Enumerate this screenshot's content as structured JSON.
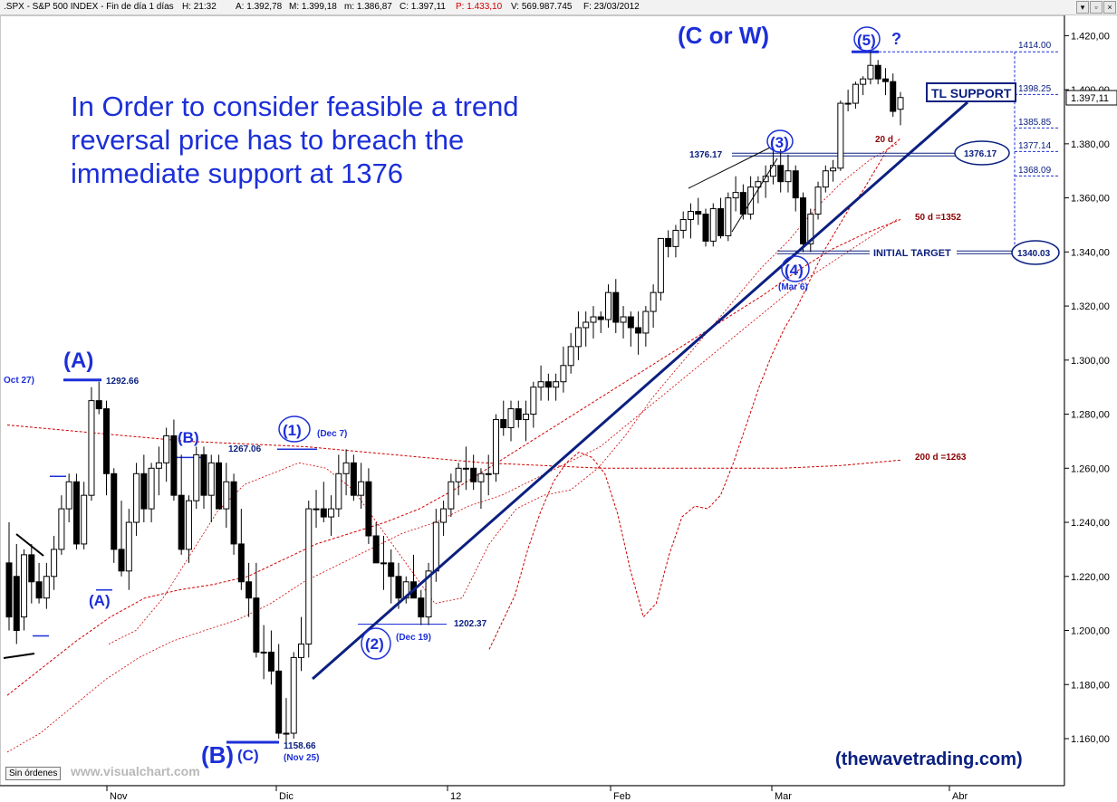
{
  "header": {
    "symbol": ".SPX - S&P 500 INDEX - Fin de día 1 días",
    "hour": "H: 21:32",
    "open": "A: 1.392,78",
    "high": "M: 1.399,18",
    "low": "m: 1.386,87",
    "close": "C: 1.397,11",
    "pd": "P: 1.433,10",
    "volume": "V: 569.987.745",
    "date": "F: 23/03/2012"
  },
  "toolbar": {
    "sin_ordenes": "Sin órdenes",
    "watermark": "www.visualchart.com"
  },
  "chart_data": {
    "type": "candlestick",
    "instrument": ".SPX - S&P 500 INDEX",
    "ylim": [
      1145,
      1435
    ],
    "y_ticks": [
      "1.160,00",
      "1.180,00",
      "1.200,00",
      "1.220,00",
      "1.240,00",
      "1.260,00",
      "1.280,00",
      "1.300,00",
      "1.320,00",
      "1.340,00",
      "1.360,00",
      "1.380,00",
      "1.400,00",
      "1.420,00"
    ],
    "x_ticks": [
      "Nov",
      "Dic",
      "12",
      "Feb",
      "Mar",
      "Abr"
    ],
    "last_price": "1.397,11",
    "candles_ohlc": [
      [
        1225,
        1240,
        1200,
        1205
      ],
      [
        1220,
        1232,
        1195,
        1200
      ],
      [
        1205,
        1230,
        1200,
        1228
      ],
      [
        1228,
        1232,
        1210,
        1218
      ],
      [
        1218,
        1225,
        1210,
        1212
      ],
      [
        1212,
        1225,
        1208,
        1220
      ],
      [
        1220,
        1235,
        1215,
        1230
      ],
      [
        1230,
        1250,
        1228,
        1245
      ],
      [
        1245,
        1258,
        1240,
        1255
      ],
      [
        1255,
        1258,
        1230,
        1232
      ],
      [
        1232,
        1255,
        1230,
        1250
      ],
      [
        1250,
        1290,
        1248,
        1285
      ],
      [
        1285,
        1292,
        1280,
        1282
      ],
      [
        1282,
        1285,
        1250,
        1258
      ],
      [
        1258,
        1260,
        1225,
        1230
      ],
      [
        1230,
        1248,
        1220,
        1222
      ],
      [
        1222,
        1245,
        1215,
        1240
      ],
      [
        1240,
        1262,
        1235,
        1258
      ],
      [
        1258,
        1265,
        1240,
        1245
      ],
      [
        1245,
        1262,
        1240,
        1260
      ],
      [
        1260,
        1268,
        1250,
        1262
      ],
      [
        1262,
        1275,
        1255,
        1272
      ],
      [
        1272,
        1278,
        1248,
        1250
      ],
      [
        1250,
        1265,
        1228,
        1230
      ],
      [
        1230,
        1250,
        1225,
        1248
      ],
      [
        1248,
        1268,
        1245,
        1265
      ],
      [
        1265,
        1268,
        1245,
        1250
      ],
      [
        1250,
        1265,
        1240,
        1262
      ],
      [
        1262,
        1265,
        1245,
        1245
      ],
      [
        1245,
        1262,
        1238,
        1255
      ],
      [
        1255,
        1258,
        1228,
        1232
      ],
      [
        1232,
        1245,
        1215,
        1218
      ],
      [
        1218,
        1225,
        1205,
        1212
      ],
      [
        1212,
        1225,
        1190,
        1192
      ],
      [
        1192,
        1202,
        1182,
        1192
      ],
      [
        1192,
        1200,
        1180,
        1185
      ],
      [
        1185,
        1195,
        1160,
        1162
      ],
      [
        1162,
        1175,
        1158,
        1162
      ],
      [
        1162,
        1192,
        1160,
        1190
      ],
      [
        1190,
        1205,
        1185,
        1195
      ],
      [
        1195,
        1248,
        1190,
        1245
      ],
      [
        1245,
        1252,
        1238,
        1245
      ],
      [
        1245,
        1255,
        1240,
        1242
      ],
      [
        1242,
        1250,
        1235,
        1245
      ],
      [
        1245,
        1265,
        1242,
        1258
      ],
      [
        1258,
        1267,
        1250,
        1262
      ],
      [
        1262,
        1265,
        1248,
        1250
      ],
      [
        1250,
        1262,
        1245,
        1255
      ],
      [
        1255,
        1260,
        1232,
        1235
      ],
      [
        1235,
        1240,
        1225,
        1225
      ],
      [
        1225,
        1235,
        1215,
        1225
      ],
      [
        1225,
        1230,
        1210,
        1220
      ],
      [
        1220,
        1225,
        1208,
        1212
      ],
      [
        1212,
        1220,
        1210,
        1218
      ],
      [
        1218,
        1228,
        1212,
        1212
      ],
      [
        1212,
        1215,
        1202,
        1205
      ],
      [
        1205,
        1225,
        1202,
        1222
      ],
      [
        1222,
        1245,
        1218,
        1240
      ],
      [
        1240,
        1248,
        1235,
        1245
      ],
      [
        1245,
        1258,
        1242,
        1255
      ],
      [
        1255,
        1262,
        1250,
        1260
      ],
      [
        1260,
        1268,
        1252,
        1260
      ],
      [
        1260,
        1265,
        1252,
        1255
      ],
      [
        1255,
        1260,
        1245,
        1258
      ],
      [
        1258,
        1265,
        1250,
        1258
      ],
      [
        1258,
        1280,
        1255,
        1278
      ],
      [
        1278,
        1285,
        1272,
        1275
      ],
      [
        1275,
        1285,
        1270,
        1282
      ],
      [
        1282,
        1285,
        1275,
        1278
      ],
      [
        1278,
        1285,
        1270,
        1280
      ],
      [
        1280,
        1292,
        1275,
        1290
      ],
      [
        1290,
        1298,
        1285,
        1292
      ],
      [
        1292,
        1295,
        1285,
        1290
      ],
      [
        1290,
        1295,
        1285,
        1292
      ],
      [
        1292,
        1305,
        1288,
        1298
      ],
      [
        1298,
        1310,
        1295,
        1305
      ],
      [
        1305,
        1318,
        1300,
        1312
      ],
      [
        1312,
        1318,
        1305,
        1314
      ],
      [
        1314,
        1320,
        1308,
        1316
      ],
      [
        1316,
        1318,
        1310,
        1315
      ],
      [
        1315,
        1328,
        1312,
        1325
      ],
      [
        1325,
        1330,
        1310,
        1314
      ],
      [
        1314,
        1320,
        1308,
        1316
      ],
      [
        1316,
        1318,
        1305,
        1312
      ],
      [
        1312,
        1318,
        1302,
        1310
      ],
      [
        1310,
        1320,
        1305,
        1318
      ],
      [
        1318,
        1328,
        1312,
        1325
      ],
      [
        1325,
        1345,
        1322,
        1345
      ],
      [
        1345,
        1348,
        1338,
        1342
      ],
      [
        1342,
        1350,
        1338,
        1348
      ],
      [
        1348,
        1355,
        1345,
        1352
      ],
      [
        1352,
        1358,
        1345,
        1355
      ],
      [
        1355,
        1360,
        1350,
        1354
      ],
      [
        1354,
        1356,
        1342,
        1344
      ],
      [
        1344,
        1358,
        1342,
        1356
      ],
      [
        1356,
        1360,
        1345,
        1346
      ],
      [
        1346,
        1362,
        1344,
        1360
      ],
      [
        1360,
        1368,
        1355,
        1362
      ],
      [
        1362,
        1365,
        1352,
        1354
      ],
      [
        1354,
        1368,
        1352,
        1364
      ],
      [
        1364,
        1368,
        1358,
        1366
      ],
      [
        1366,
        1372,
        1360,
        1368
      ],
      [
        1368,
        1378,
        1365,
        1372
      ],
      [
        1372,
        1378,
        1362,
        1366
      ],
      [
        1366,
        1376,
        1362,
        1370
      ],
      [
        1370,
        1372,
        1355,
        1360
      ],
      [
        1360,
        1362,
        1340,
        1343
      ],
      [
        1343,
        1356,
        1340,
        1354
      ],
      [
        1354,
        1366,
        1352,
        1364
      ],
      [
        1364,
        1372,
        1362,
        1370
      ],
      [
        1370,
        1374,
        1366,
        1371
      ],
      [
        1371,
        1396,
        1370,
        1395
      ],
      [
        1395,
        1400,
        1392,
        1395
      ],
      [
        1395,
        1403,
        1393,
        1402
      ],
      [
        1402,
        1405,
        1398,
        1404
      ],
      [
        1404,
        1414,
        1402,
        1409
      ],
      [
        1409,
        1411,
        1402,
        1404
      ],
      [
        1404,
        1408,
        1398,
        1403
      ],
      [
        1403,
        1406,
        1390,
        1392
      ],
      [
        1392.78,
        1399.18,
        1386.87,
        1397.11
      ]
    ],
    "moving_averages": [
      {
        "name": "20 d",
        "values": [
          1193,
          1203,
          1213,
          1230,
          1244,
          1255,
          1262,
          1266,
          1264,
          1258,
          1243,
          1222,
          1205,
          1210,
          1228,
          1242,
          1246,
          1245,
          1250,
          1262,
          1276,
          1290,
          1302,
          1312,
          1320,
          1330,
          1340,
          1348,
          1356,
          1362,
          1370,
          1378,
          1382
        ]
      },
      {
        "name": "50 d =1352",
        "values": [
          1176,
          1186,
          1196,
          1205,
          1212,
          1215,
          1217,
          1220,
          1226,
          1232,
          1236,
          1240,
          1245,
          1252,
          1260,
          1268,
          1276,
          1284,
          1292,
          1300,
          1308,
          1316,
          1324,
          1333,
          1341,
          1347,
          1352
        ]
      },
      {
        "name": "200 d =1263",
        "values": [
          1276,
          1274,
          1272,
          1270,
          1269,
          1268,
          1266,
          1264,
          1262,
          1261,
          1260,
          1260,
          1260,
          1260,
          1261,
          1263
        ]
      }
    ],
    "levels": [
      {
        "label": "1414.00",
        "value": 1414
      },
      {
        "label": "1398.25",
        "value": 1398.25
      },
      {
        "label": "1385.85",
        "value": 1385.85
      },
      {
        "label": "1377.14",
        "value": 1377.14
      },
      {
        "label": "1376.17",
        "value": 1376.17
      },
      {
        "label": "1368.09",
        "value": 1368.09
      },
      {
        "label": "1340.03",
        "value": 1340.03
      },
      {
        "label": "1292.66",
        "value": 1292.66
      },
      {
        "label": "1267.06",
        "value": 1267.06
      },
      {
        "label": "1202.37",
        "value": 1202.37
      },
      {
        "label": "1158.66",
        "value": 1158.66
      }
    ],
    "annotations": {
      "headline": [
        "In Order to consider feasible a trend",
        "reversal price has to breach the",
        "immediate support at 1376"
      ],
      "cw": "(C or W)",
      "wave5": "(5)",
      "q": "?",
      "wave3": "(3)",
      "wave4": "(4)",
      "wave4_date": "(Mar 6)",
      "wave1": "(1)",
      "wave1_date": "(Dec 7)",
      "wave2": "(2)",
      "wave2_date": "(Dec 19)",
      "A_big": "(A)",
      "A_small": "(A)",
      "B_small": "(B)",
      "B_big": "(B)",
      "C_small": "(C)",
      "oct27": "Oct 27)",
      "nov25": "(Nov 25)",
      "tl_support": "TL SUPPORT",
      "initial_target": "INITIAL TARGET",
      "ma20": "20 d",
      "ma50": "50 d =1352",
      "ma200": "200 d =1263",
      "lbl_1376": "1376.17",
      "lbl_1340": "1340.03",
      "lbl_1292": "1292.66",
      "lbl_1267": "1267.06",
      "lbl_1202": "1202.37",
      "lbl_1158": "1158.66",
      "lbl_1414": "1414.00",
      "lbl_1398": "1398.25",
      "lbl_1385": "1385.85",
      "lbl_1377": "1377.14",
      "lbl_1368": "1368.09",
      "site": "(thewavetrading.com)"
    }
  }
}
